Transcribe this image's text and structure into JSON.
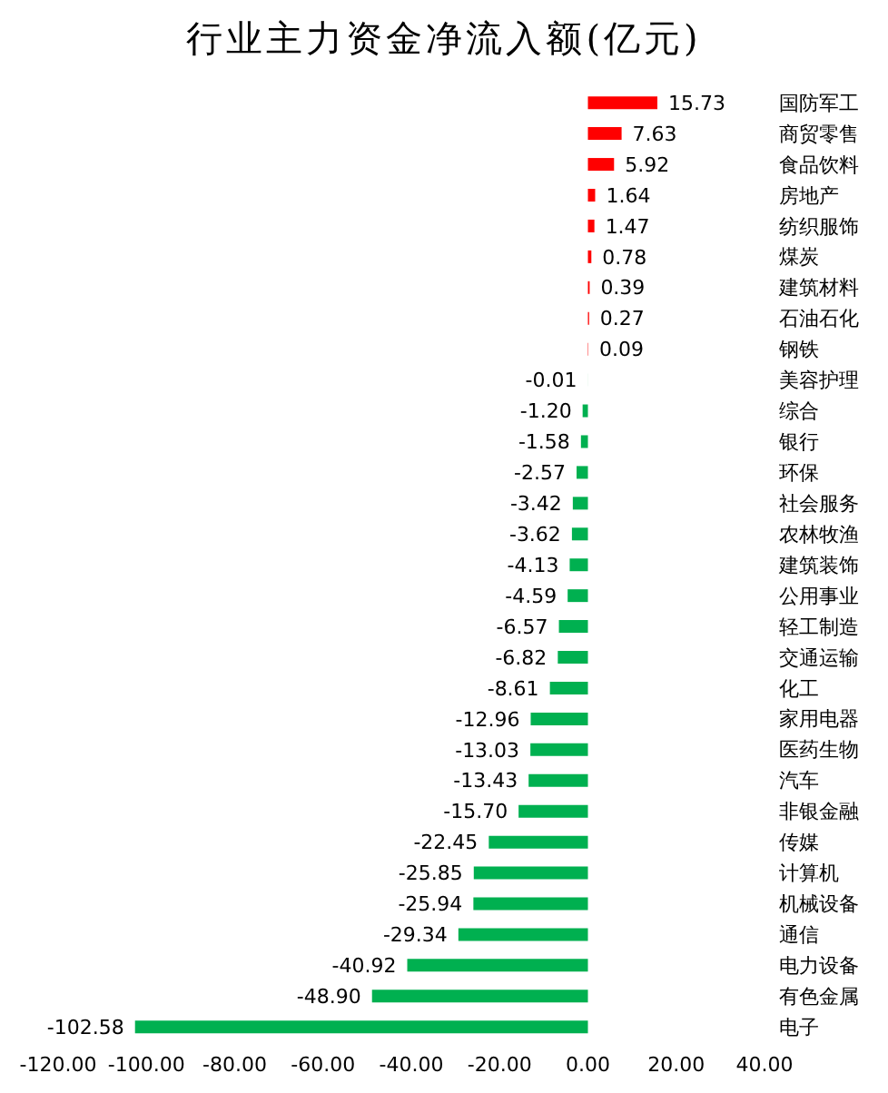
{
  "chart_data": {
    "type": "bar",
    "orientation": "horizontal",
    "title": "行业主力资金净流入额(亿元)",
    "categories": [
      "国防军工",
      "商贸零售",
      "食品饮料",
      "房地产",
      "纺织服饰",
      "煤炭",
      "建筑材料",
      "石油石化",
      "钢铁",
      "美容护理",
      "综合",
      "银行",
      "环保",
      "社会服务",
      "农林牧渔",
      "建筑装饰",
      "公用事业",
      "轻工制造",
      "交通运输",
      "化工",
      "家用电器",
      "医药生物",
      "汽车",
      "非银金融",
      "传媒",
      "计算机",
      "机械设备",
      "通信",
      "电力设备",
      "有色金属",
      "电子"
    ],
    "values": [
      15.73,
      7.63,
      5.92,
      1.64,
      1.47,
      0.78,
      0.39,
      0.27,
      0.09,
      -0.01,
      -1.2,
      -1.58,
      -2.57,
      -3.42,
      -3.62,
      -4.13,
      -4.59,
      -6.57,
      -6.82,
      -8.61,
      -12.96,
      -13.03,
      -13.43,
      -15.7,
      -22.45,
      -25.85,
      -25.94,
      -29.34,
      -40.92,
      -48.9,
      -102.58
    ],
    "colors": [
      "#ff0000",
      "#ff0000",
      "#ff0000",
      "#ff0000",
      "#ff0000",
      "#ff0000",
      "#ff0000",
      "#ff0000",
      "#ff0000",
      "#00b050",
      "#00b050",
      "#00b050",
      "#00b050",
      "#00b050",
      "#00b050",
      "#00b050",
      "#00b050",
      "#00b050",
      "#00b050",
      "#00b050",
      "#00b050",
      "#00b050",
      "#00b050",
      "#00b050",
      "#00b050",
      "#00b050",
      "#00b050",
      "#00b050",
      "#00b050",
      "#00b050",
      "#00b050"
    ],
    "xlim": [
      -120,
      40
    ],
    "xticks": [
      {
        "value": -120,
        "label": "-120.00"
      },
      {
        "value": -100,
        "label": "-100.00"
      },
      {
        "value": -80,
        "label": "-80.00"
      },
      {
        "value": -60,
        "label": "-60.00"
      },
      {
        "value": -40,
        "label": "-40.00"
      },
      {
        "value": -20,
        "label": "-20.00"
      },
      {
        "value": 0,
        "label": "0.00"
      },
      {
        "value": 20,
        "label": "20.00"
      },
      {
        "value": 40,
        "label": "40.00"
      }
    ],
    "value_labels": [
      "15.73",
      "7.63",
      "5.92",
      "1.64",
      "1.47",
      "0.78",
      "0.39",
      "0.27",
      "0.09",
      "-0.01",
      "-1.20",
      "-1.58",
      "-2.57",
      "-3.42",
      "-3.62",
      "-4.13",
      "-4.59",
      "-6.57",
      "-6.82",
      "-8.61",
      "-12.96",
      "-13.03",
      "-13.43",
      "-15.70",
      "-22.45",
      "-25.85",
      "-25.94",
      "-29.34",
      "-40.92",
      "-48.90",
      "-102.58"
    ],
    "grid": false
  }
}
